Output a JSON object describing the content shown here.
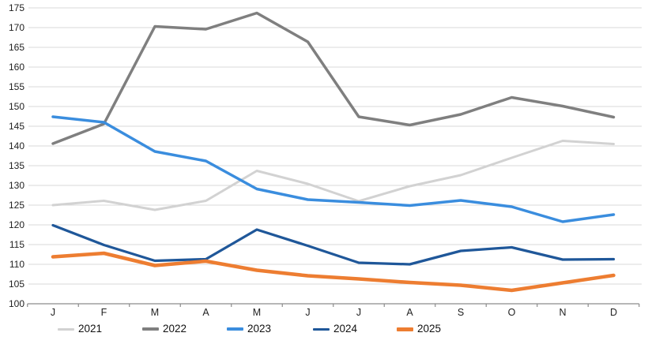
{
  "chart_data": {
    "type": "line",
    "title": "",
    "xlabel": "",
    "ylabel": "",
    "categories": [
      "J",
      "F",
      "M",
      "A",
      "M",
      "J",
      "J",
      "A",
      "S",
      "O",
      "N",
      "D"
    ],
    "y_axis": {
      "min": 100,
      "max": 175,
      "step": 5,
      "ticks": [
        100,
        105,
        110,
        115,
        120,
        125,
        130,
        135,
        140,
        145,
        150,
        155,
        160,
        165,
        170,
        175
      ]
    },
    "grid": true,
    "legend_position": "bottom",
    "series": [
      {
        "name": "2021",
        "color": "#D2D2D2",
        "width": 3,
        "values": [
          125.0,
          126.1,
          123.8,
          126.1,
          133.7,
          130.4,
          126.0,
          129.8,
          132.6,
          137.0,
          141.3,
          140.5
        ]
      },
      {
        "name": "2022",
        "color": "#7F7F7F",
        "width": 3.5,
        "values": [
          140.6,
          145.6,
          170.3,
          169.6,
          173.7,
          166.4,
          147.4,
          145.3,
          148.0,
          152.3,
          150.1,
          147.3
        ]
      },
      {
        "name": "2023",
        "color": "#3A8DDE",
        "width": 3.5,
        "values": [
          147.4,
          146.0,
          138.6,
          136.2,
          129.1,
          126.4,
          125.7,
          124.9,
          126.2,
          124.6,
          120.8,
          122.6
        ]
      },
      {
        "name": "2024",
        "color": "#1F5799",
        "width": 3.25,
        "values": [
          119.9,
          114.9,
          110.9,
          111.3,
          118.8,
          114.7,
          110.4,
          110.0,
          113.4,
          114.3,
          111.2,
          111.3
        ]
      },
      {
        "name": "2025",
        "color": "#ED7D31",
        "width": 4.5,
        "values": [
          111.9,
          112.8,
          109.7,
          110.8,
          108.5,
          107.1,
          106.3,
          105.4,
          104.7,
          103.4,
          105.3,
          107.2
        ]
      }
    ]
  },
  "colors": {
    "background": "#FFFFFF",
    "gridline": "#D9D9D9",
    "axis_line": "#8C8C8C",
    "tick_label": "#1F1F1F"
  }
}
